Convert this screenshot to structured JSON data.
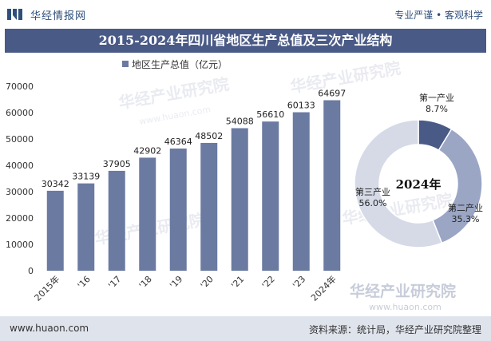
{
  "brand": {
    "name": "华经情报网"
  },
  "slogan": "专业严谨 • 客观科学",
  "chart_title": "2015-2024年四川省地区生产总值及三次产业结构",
  "watermarks": {
    "cn": "华经产业研究院",
    "url": "www.huaon.com"
  },
  "footer": {
    "url": "www.huaon.com",
    "source": "资料来源：统计局，华经产业研究院整理"
  },
  "colors": {
    "bar": "#6b7aa1",
    "title_bg": "#4a5a86",
    "donut_primary": "#4a5a86",
    "donut_secondary": "#9aa6c4",
    "donut_tertiary": "#d5dae6"
  },
  "chart_data": [
    {
      "type": "bar",
      "title": "2015-2024年四川省地区生产总值及三次产业结构",
      "categories": [
        "2015年",
        "'16",
        "'17",
        "'18",
        "'19",
        "'20",
        "'21",
        "'22",
        "'23",
        "2024年"
      ],
      "series": [
        {
          "name": "地区生产总值（亿元）",
          "values": [
            30342,
            33139,
            37905,
            42902,
            46364,
            48502,
            54088,
            56610,
            60133,
            64697
          ]
        }
      ],
      "y_ticks": [
        0,
        10000,
        20000,
        30000,
        40000,
        50000,
        60000,
        70000
      ],
      "ylim": [
        0,
        70000
      ],
      "legend": "top-left",
      "grid": false
    },
    {
      "type": "pie",
      "center_label": "2024年",
      "slices": [
        {
          "label": "第一产业",
          "value": 8.7,
          "display": "8.7%"
        },
        {
          "label": "第二产业",
          "value": 35.3,
          "display": "35.3%"
        },
        {
          "label": "第三产业",
          "value": 56.0,
          "display": "56.0%"
        }
      ]
    }
  ]
}
